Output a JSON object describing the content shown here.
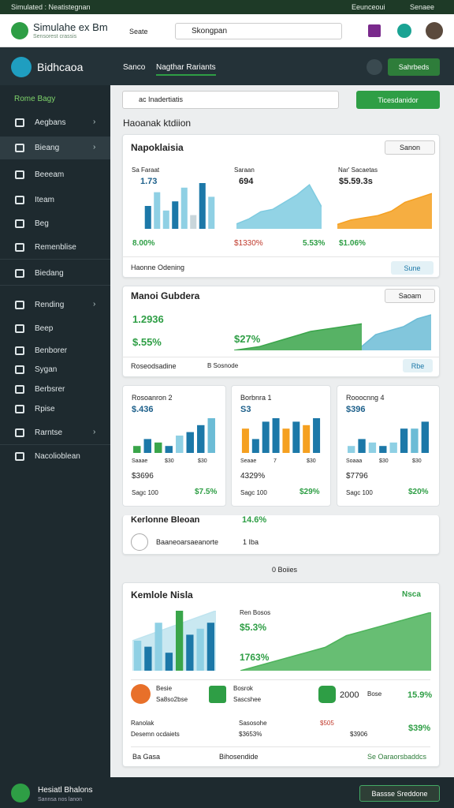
{
  "status_bar": {
    "title": "Simulated : Neatistegnan",
    "right": [
      "Eeunceoui",
      "Senaee"
    ]
  },
  "header": {
    "brand": "Simulahe ex Bm",
    "tagline": "Sensorest crassis",
    "button": "Seate",
    "search": "Skongpan"
  },
  "nav": {
    "brand": "Bidhcaoa",
    "tabs": [
      "Sanco",
      "Nagthar Rariants"
    ],
    "action": "Sahrbeds"
  },
  "sidebar": {
    "section": "Rome Bagy",
    "items": [
      "Aegbans",
      "Bieang",
      "Beeeam",
      "Iteam",
      "Beg",
      "Remenblise",
      "Biedang",
      "Rending",
      "Beep",
      "Benborer",
      "Sygan",
      "Berbsrer",
      "Rpise",
      "Rarntse",
      "Nacolioblean"
    ]
  },
  "toolbar": {
    "search": "ac Inadertiatis",
    "button": "Ticesdanidor"
  },
  "section_title": "Haoanak ktdiion",
  "card1": {
    "title": "Napoklaisia",
    "dropdown": "Sanon",
    "footer": "Haonne Odening",
    "button": "Sune",
    "charts": [
      {
        "type": "bar",
        "label": "Sa Faraat",
        "value": "1.73",
        "change": "8.00%",
        "ylim": [
          0,
          10
        ],
        "values": [
          5,
          8,
          4,
          6,
          9,
          3,
          10,
          7
        ],
        "colors": [
          "#1c78a8",
          "#8fd0e4",
          "#8fd0e4",
          "#1c78a8",
          "#8fd0e4",
          "#c9d6db",
          "#1c78a8",
          "#8fd0e4"
        ]
      },
      {
        "type": "area",
        "label": "Saraan",
        "value": "694",
        "change": "$1330%",
        "change2": "5.53%",
        "ylim": [
          0,
          10
        ],
        "values": [
          1,
          2,
          3.5,
          4,
          5.5,
          7,
          9,
          4.5
        ],
        "color": "#7fcbe0"
      },
      {
        "type": "area",
        "label": "Nar' Sacaetas",
        "value": "$5.59.3s",
        "change": "$1.06%",
        "ylim": [
          0,
          10
        ],
        "values": [
          1,
          2,
          2.5,
          3,
          4,
          6,
          7,
          8
        ],
        "color": "#f5a020"
      }
    ]
  },
  "card2": {
    "title": "Manoi Gubdera",
    "dropdown": "Saoam",
    "value": "1.2936",
    "change": "$.55%",
    "chart_label": "$27%",
    "footer": [
      "Roseodsadine",
      "B Sosnode"
    ],
    "button": "Rbe",
    "charts": [
      {
        "type": "area",
        "ylim": [
          0,
          10
        ],
        "values": [
          0,
          1,
          3,
          5,
          6,
          7
        ],
        "color": "#3aa54a"
      },
      {
        "type": "area",
        "ylim": [
          0,
          10
        ],
        "values": [
          1,
          4,
          5,
          6,
          8,
          9
        ],
        "color": "#6cbcd6"
      }
    ]
  },
  "card3": {
    "subcards": [
      {
        "title": "Rosoanron 2",
        "value": "$.436",
        "ticks": [
          "Saaae",
          "$30",
          "$30"
        ],
        "total": "$3696",
        "foot": "Sagc 100",
        "change": "$7.5%",
        "chart": {
          "type": "bar",
          "ylim": [
            0,
            10
          ],
          "values": [
            2,
            4,
            3,
            2,
            5,
            6,
            8,
            10
          ],
          "colors": [
            "#3aa54a",
            "#1c78a8",
            "#3aa54a",
            "#1c78a8",
            "#8fd0e4",
            "#1c78a8",
            "#1c78a8",
            "#6cbcd6"
          ]
        }
      },
      {
        "title": "Borbnra 1",
        "value": "S3",
        "ticks": [
          "Seaae",
          "7",
          "$30"
        ],
        "total": "4329%",
        "foot": "Sagc 100",
        "change": "$29%",
        "chart": {
          "type": "bar",
          "ylim": [
            0,
            10
          ],
          "values": [
            7,
            4,
            9,
            10,
            7,
            9,
            8,
            10
          ],
          "colors": [
            "#f5a020",
            "#1c78a8",
            "#1c78a8",
            "#1c78a8",
            "#f5a020",
            "#1c78a8",
            "#f5a020",
            "#1c78a8"
          ]
        }
      },
      {
        "title": "Rooocnng 4",
        "value": "$396",
        "ticks": [
          "Soaaa",
          "$30",
          "$30"
        ],
        "total": "$7796",
        "foot": "Sagc 100",
        "change": "$20%",
        "chart": {
          "type": "bar",
          "ylim": [
            0,
            10
          ],
          "values": [
            2,
            4,
            3,
            2,
            3,
            7,
            7,
            9
          ],
          "colors": [
            "#8fd0e4",
            "#1c78a8",
            "#8fd0e4",
            "#1c78a8",
            "#8fd0e4",
            "#1c78a8",
            "#6cbcd6",
            "#1c78a8"
          ]
        }
      }
    ],
    "summary": {
      "label": "Kerlonne Bleoan",
      "value": "14.6%",
      "row": "Baaneoarsaeanorte",
      "row_value": "1 Iba"
    }
  },
  "divider": "0 Boiies",
  "card4": {
    "title": "Kemlole Nisla",
    "tag": "Nsca",
    "chart": {
      "type": "bar",
      "ylim": [
        0,
        10
      ],
      "values": [
        5,
        4,
        8,
        3,
        10,
        6,
        7,
        8
      ],
      "colors": [
        "#8fd0e4",
        "#1c78a8",
        "#8fd0e4",
        "#1c78a8",
        "#3aa54a",
        "#1c78a8",
        "#8fd0e4",
        "#1c78a8"
      ],
      "area": [
        5,
        6,
        7,
        8,
        9,
        10
      ]
    },
    "mid": [
      "Ren Bosos",
      "$5.3%",
      "1763%"
    ],
    "area": {
      "type": "area",
      "ylim": [
        0,
        10
      ],
      "values": [
        0,
        1,
        2,
        3,
        4,
        6,
        7,
        8,
        9,
        10
      ],
      "color": "#4cb35a"
    },
    "row1": [
      [
        "Besie",
        "Sa8so2bse"
      ],
      [
        "Bosrok",
        "Sascshee"
      ],
      [
        "2000",
        "Bose"
      ],
      [
        "15.9%"
      ]
    ],
    "row2": [
      [
        "Ranolak",
        "Desemn ocdaiets"
      ],
      [
        "Sasosohe",
        "$3653%"
      ],
      [
        "$505",
        "$3906"
      ],
      [
        "$39%"
      ]
    ],
    "links": [
      "Ba Gasa",
      "Bihosendide",
      "Se Oaraorsbaddcs"
    ]
  },
  "footer": {
    "title": "Hesiatl Bhalons",
    "sub": "Sannsa nos lanon",
    "button": "Bassse Sreddone"
  }
}
